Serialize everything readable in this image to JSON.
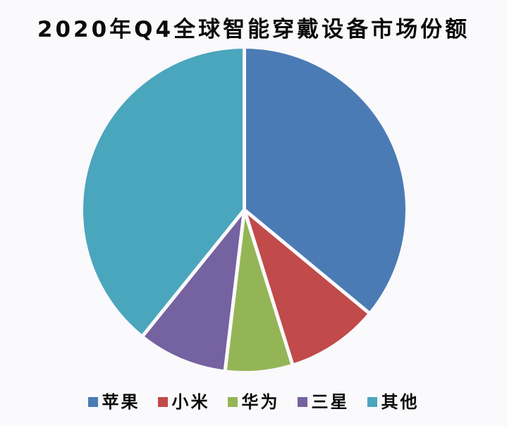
{
  "page": {
    "background_color": "#faf9fb",
    "text_color": "#0b0b0b"
  },
  "chart_data": {
    "type": "pie",
    "title": "2020年Q4全球智能穿戴设备市场份额",
    "categories": [
      "苹果",
      "小米",
      "华为",
      "三星",
      "其他"
    ],
    "values": [
      36.0,
      9.2,
      6.7,
      8.9,
      39.2
    ],
    "unit": "%",
    "colors": [
      "#4b7bb5",
      "#c14a4a",
      "#94b556",
      "#7562a0",
      "#4aa6bd"
    ],
    "slice_names": [
      "apple",
      "xiaomi",
      "huawei",
      "samsung",
      "others"
    ],
    "start_angle_deg": -90,
    "direction": "clockwise",
    "legend_position": "bottom",
    "slice_gap_color": "#faf9fb",
    "slice_gap_width": 5
  }
}
